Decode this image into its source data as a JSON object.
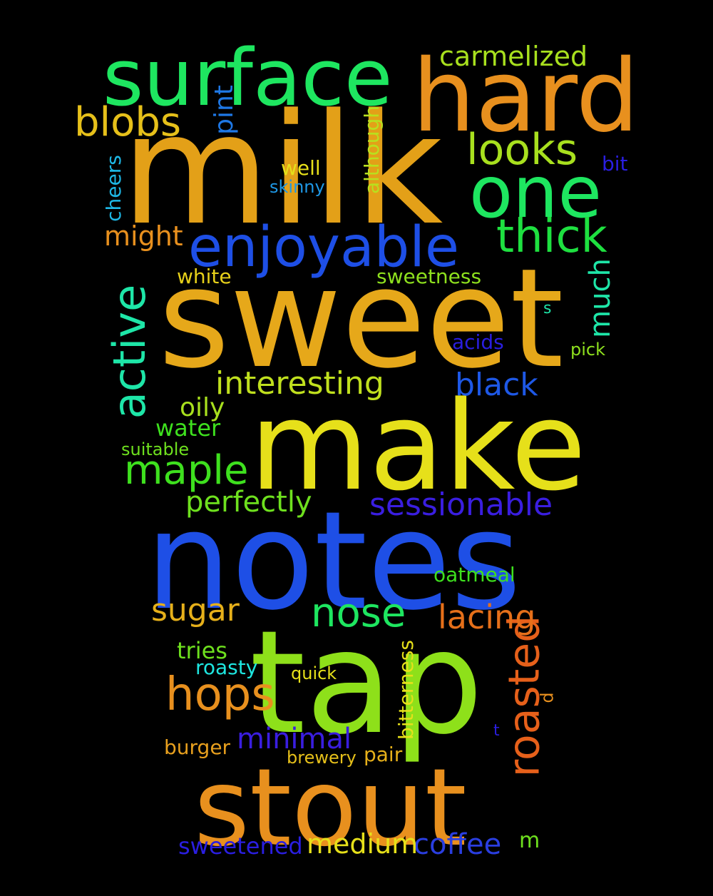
{
  "words": [
    {
      "text": "milk",
      "color": "#e3a018"
    },
    {
      "text": "sweet",
      "color": "#e6a81a"
    },
    {
      "text": "notes",
      "color": "#1e4fe6"
    },
    {
      "text": "tap",
      "color": "#8ee01a"
    },
    {
      "text": "make",
      "color": "#e6e01a"
    },
    {
      "text": "stout",
      "color": "#e8901e"
    },
    {
      "text": "hard",
      "color": "#e8901e"
    },
    {
      "text": "surface",
      "color": "#1ee660"
    },
    {
      "text": "one",
      "color": "#1ee660"
    },
    {
      "text": "enjoyable",
      "color": "#1e4fe6"
    },
    {
      "text": "thick",
      "color": "#1ee040"
    },
    {
      "text": "looks",
      "color": "#a8e01e"
    },
    {
      "text": "blobs",
      "color": "#e6c01a"
    },
    {
      "text": "active",
      "color": "#1ee6a8"
    },
    {
      "text": "roasted",
      "color": "#e6601a"
    },
    {
      "text": "hops",
      "color": "#e8901e"
    },
    {
      "text": "nose",
      "color": "#1ee660"
    },
    {
      "text": "lacing",
      "color": "#e6701a"
    },
    {
      "text": "maple",
      "color": "#3ee01e"
    },
    {
      "text": "sessionable",
      "color": "#3a1ee0"
    },
    {
      "text": "interesting",
      "color": "#c0e01e"
    },
    {
      "text": "black",
      "color": "#1e58e6"
    },
    {
      "text": "sugar",
      "color": "#e6b01a"
    },
    {
      "text": "perfectly",
      "color": "#6ee01e"
    },
    {
      "text": "minimal",
      "color": "#3a1ee0"
    },
    {
      "text": "coffee",
      "color": "#2a3ee0"
    },
    {
      "text": "medium",
      "color": "#e6e01a"
    },
    {
      "text": "sweetened",
      "color": "#2a1ee0"
    },
    {
      "text": "carmelized",
      "color": "#a8e01e"
    },
    {
      "text": "might",
      "color": "#e8901e"
    },
    {
      "text": "much",
      "color": "#1ee6a8"
    },
    {
      "text": "oily",
      "color": "#a8e01e"
    },
    {
      "text": "pint",
      "color": "#1e78e6"
    },
    {
      "text": "bitterness",
      "color": "#e6e01a"
    },
    {
      "text": "although",
      "color": "#b8e01e"
    },
    {
      "text": "cheers",
      "color": "#1eb8e6"
    },
    {
      "text": "water",
      "color": "#3ee01e"
    },
    {
      "text": "tries",
      "color": "#6ee01e"
    },
    {
      "text": "burger",
      "color": "#e8a01e"
    },
    {
      "text": "pair",
      "color": "#e6b01a"
    },
    {
      "text": "sweetness",
      "color": "#8ee01e"
    },
    {
      "text": "white",
      "color": "#e6d01a"
    },
    {
      "text": "oatmeal",
      "color": "#3ee01e"
    },
    {
      "text": "roasty",
      "color": "#1ee6e0"
    },
    {
      "text": "suitable",
      "color": "#6ee01e"
    },
    {
      "text": "brewery",
      "color": "#e6c01a"
    },
    {
      "text": "well",
      "color": "#e6e01a"
    },
    {
      "text": "skinny",
      "color": "#1e98e6"
    },
    {
      "text": "acids",
      "color": "#2a1ee0"
    },
    {
      "text": "quick",
      "color": "#e6e01a"
    },
    {
      "text": "pick",
      "color": "#8ee01e"
    },
    {
      "text": "bit",
      "color": "#2a1ee0"
    },
    {
      "text": "m",
      "color": "#6ee01e"
    },
    {
      "text": "d",
      "color": "#e8901e"
    },
    {
      "text": "s",
      "color": "#1ee6a8"
    },
    {
      "text": "t",
      "color": "#2a1ee0"
    }
  ]
}
